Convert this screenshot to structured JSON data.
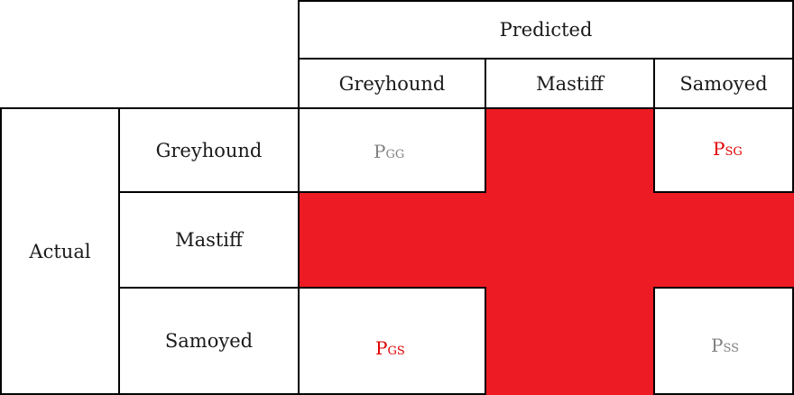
{
  "header": {
    "predicted_label": "Predicted",
    "actual_label": "Actual"
  },
  "columns": [
    "Greyhound",
    "Mastiff",
    "Samoyed"
  ],
  "rows": [
    "Greyhound",
    "Mastiff",
    "Samoyed"
  ],
  "cells": {
    "gg": {
      "main": "P",
      "sub": "GG"
    },
    "sg": {
      "main": "P",
      "sub": "SG"
    },
    "gs": {
      "main": "P",
      "sub": "GS"
    },
    "ss": {
      "main": "P",
      "sub": "SS"
    }
  },
  "colors": {
    "highlight": "#ed1c24",
    "diagonal_text": "#808080",
    "off_diagonal_text": "#e00000"
  }
}
